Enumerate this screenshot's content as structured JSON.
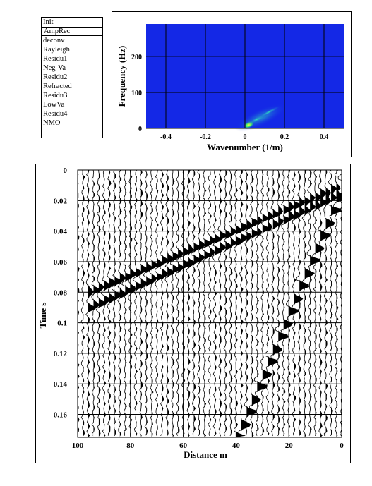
{
  "processing_list": {
    "items": [
      "Init",
      "AmpRec",
      "deconv",
      "Rayleigh",
      "Residu1",
      "Neg-Va",
      "Residu2",
      "Refracted",
      "Residu3",
      "LowVa",
      "Residu4",
      "NMO"
    ],
    "selected": "AmpRec"
  },
  "fk_panel": {
    "xlabel": "Wavenumber (1/m)",
    "ylabel": "Frequency (Hz)",
    "x_ticks": [
      "-0.4",
      "-0.2",
      "0",
      "0.2",
      "0.4"
    ],
    "y_ticks": [
      "0",
      "100",
      "200"
    ],
    "background_color": "#1428e6"
  },
  "seismic_panel": {
    "xlabel": "Distance m",
    "ylabel": "Time s",
    "x_ticks": [
      "100",
      "80",
      "60",
      "40",
      "20",
      "0"
    ],
    "y_ticks": [
      "0",
      "0.02",
      "0.04",
      "0.06",
      "0.08",
      "0.1",
      "0.12",
      "0.14",
      "0.16"
    ]
  },
  "chart_data": [
    {
      "type": "heatmap",
      "xlabel": "Wavenumber (1/m)",
      "ylabel": "Frequency (Hz)",
      "xlim": [
        -0.5,
        0.5
      ],
      "ylim": [
        0,
        290
      ],
      "x_ticks": [
        -0.4,
        -0.2,
        0,
        0.2,
        0.4
      ],
      "y_ticks": [
        0,
        100,
        200
      ],
      "grid": true,
      "hotspots": [
        {
          "k": 0.02,
          "f": 10,
          "level": "high"
        },
        {
          "k": 0.06,
          "f": 25,
          "level": "medium"
        },
        {
          "k": 0.12,
          "f": 45,
          "level": "low"
        }
      ]
    },
    {
      "type": "line",
      "xlabel": "Distance m",
      "ylabel": "Time s",
      "xlim": [
        100,
        0
      ],
      "ylim": [
        0,
        0.175
      ],
      "x_ticks": [
        100,
        80,
        60,
        40,
        20,
        0
      ],
      "y_ticks": [
        0,
        0.02,
        0.04,
        0.06,
        0.08,
        0.1,
        0.12,
        0.14,
        0.16
      ],
      "grid": true,
      "trace_spacing_m": 2,
      "events": [
        {
          "x": [
            0,
            40
          ],
          "t": [
            0.01,
            0.175
          ]
        },
        {
          "x": [
            0,
            96
          ],
          "t": [
            0.01,
            0.08
          ]
        },
        {
          "x": [
            0,
            96
          ],
          "t": [
            0.015,
            0.09
          ]
        }
      ]
    }
  ]
}
